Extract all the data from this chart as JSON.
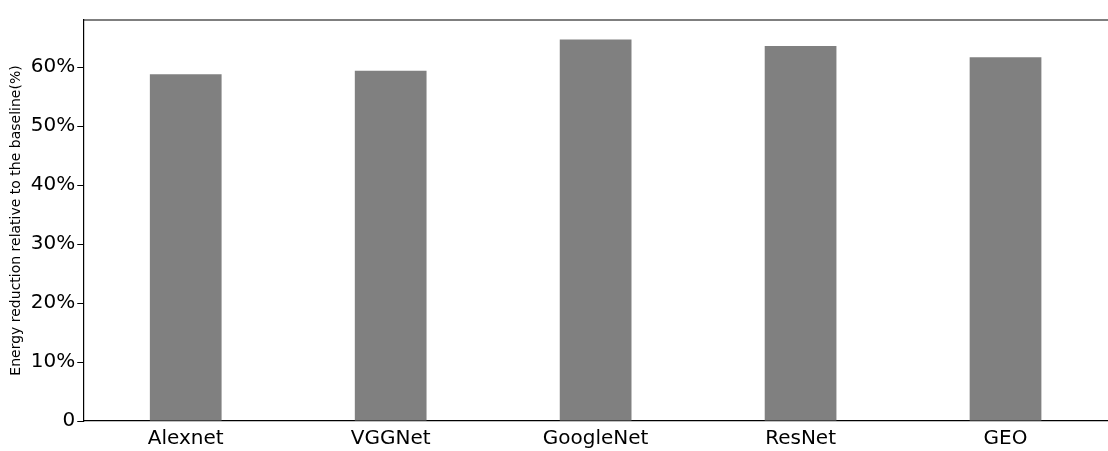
{
  "chart_data": {
    "type": "bar",
    "ylabel": "Energy reduction relative to the baseline(%)",
    "categories": [
      "Alexnet",
      "VGGNet",
      "GoogleNet",
      "ResNet",
      "GEO"
    ],
    "values": [
      58.8,
      59.4,
      64.7,
      63.6,
      61.7
    ],
    "color": "#808080",
    "ylim": [
      0,
      68
    ],
    "yticks": [
      {
        "value": 0,
        "label": "0"
      },
      {
        "value": 10,
        "label": "10%"
      },
      {
        "value": 20,
        "label": "20%"
      },
      {
        "value": 30,
        "label": "30%"
      },
      {
        "value": 40,
        "label": "40%"
      },
      {
        "value": 50,
        "label": "50%"
      },
      {
        "value": 60,
        "label": "60%"
      }
    ],
    "grid": false,
    "legend": false
  }
}
